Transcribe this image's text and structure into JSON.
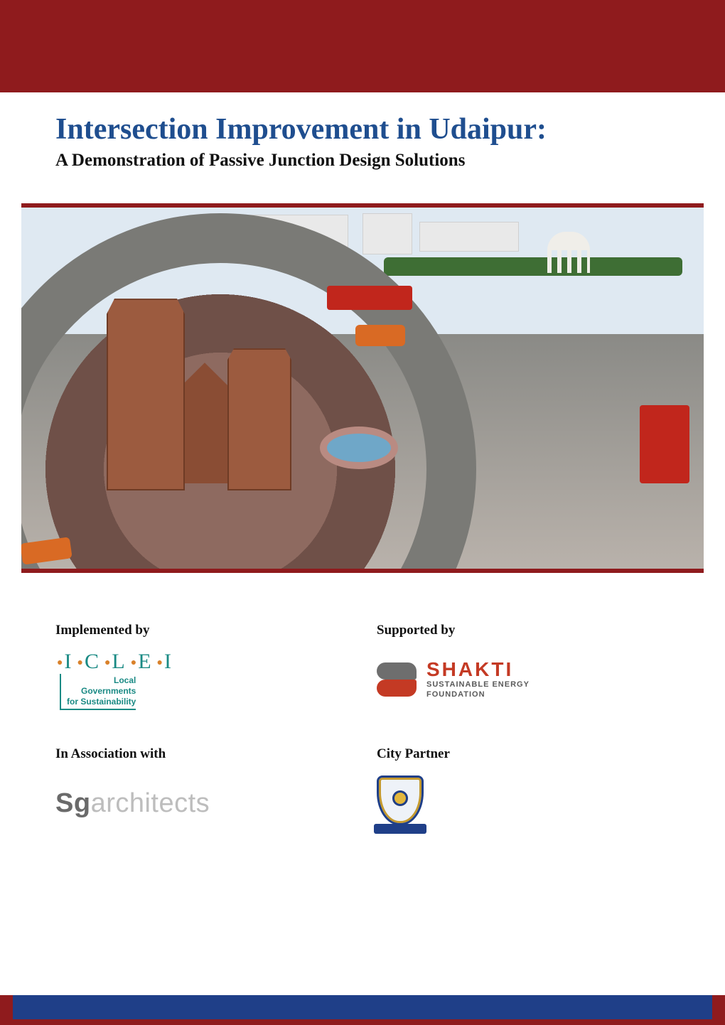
{
  "colors": {
    "maroon": "#8f1b1d",
    "navy": "#1f3f88",
    "title_blue": "#1f4e8f",
    "iclei_teal": "#1a8a84",
    "iclei_orange": "#d9812a",
    "shakti_red": "#c43a24",
    "shakti_grey": "#6e6e6e"
  },
  "title": {
    "main": "Intersection Improvement in Udaipur:",
    "sub": "A Demonstration of Passive Junction Design Solutions"
  },
  "partners": {
    "implemented_label": "Implemented by",
    "supported_label": "Supported by",
    "association_label": "In Association with",
    "city_partner_label": "City Partner",
    "iclei": {
      "letters": "I.C.L.E.I",
      "line1": "Local",
      "line2": "Governments",
      "line3": "for Sustainability"
    },
    "shakti": {
      "name": "SHAKTI",
      "line2": "SUSTAINABLE ENERGY",
      "line3": "FOUNDATION"
    },
    "sga": {
      "bold": "Sg",
      "light": "architects"
    }
  }
}
